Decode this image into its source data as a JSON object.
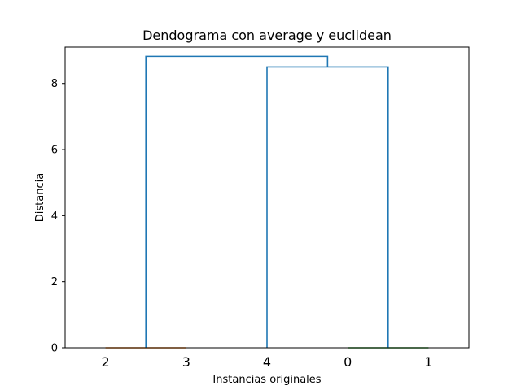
{
  "chart_data": {
    "type": "dendrogram",
    "title": "Dendograma con average y euclidean",
    "xlabel": "Instancias originales",
    "ylabel": "Distancia",
    "ylim": [
      0,
      9.1
    ],
    "yticks": [
      0,
      2,
      4,
      6,
      8
    ],
    "leaf_order": [
      "2",
      "3",
      "4",
      "0",
      "1"
    ],
    "links": [
      {
        "id": "c23",
        "left": "leaf:2",
        "right": "leaf:3",
        "height": 0.0,
        "color": "#ff7f0e"
      },
      {
        "id": "c01",
        "left": "leaf:0",
        "right": "leaf:1",
        "height": 0.0,
        "color": "#2ca02c"
      },
      {
        "id": "c401",
        "left": "leaf:4",
        "right": "c01",
        "height": 8.5,
        "color": "#1f77b4"
      },
      {
        "id": "root",
        "left": "c23",
        "right": "c401",
        "height": 8.82,
        "color": "#1f77b4"
      }
    ]
  }
}
